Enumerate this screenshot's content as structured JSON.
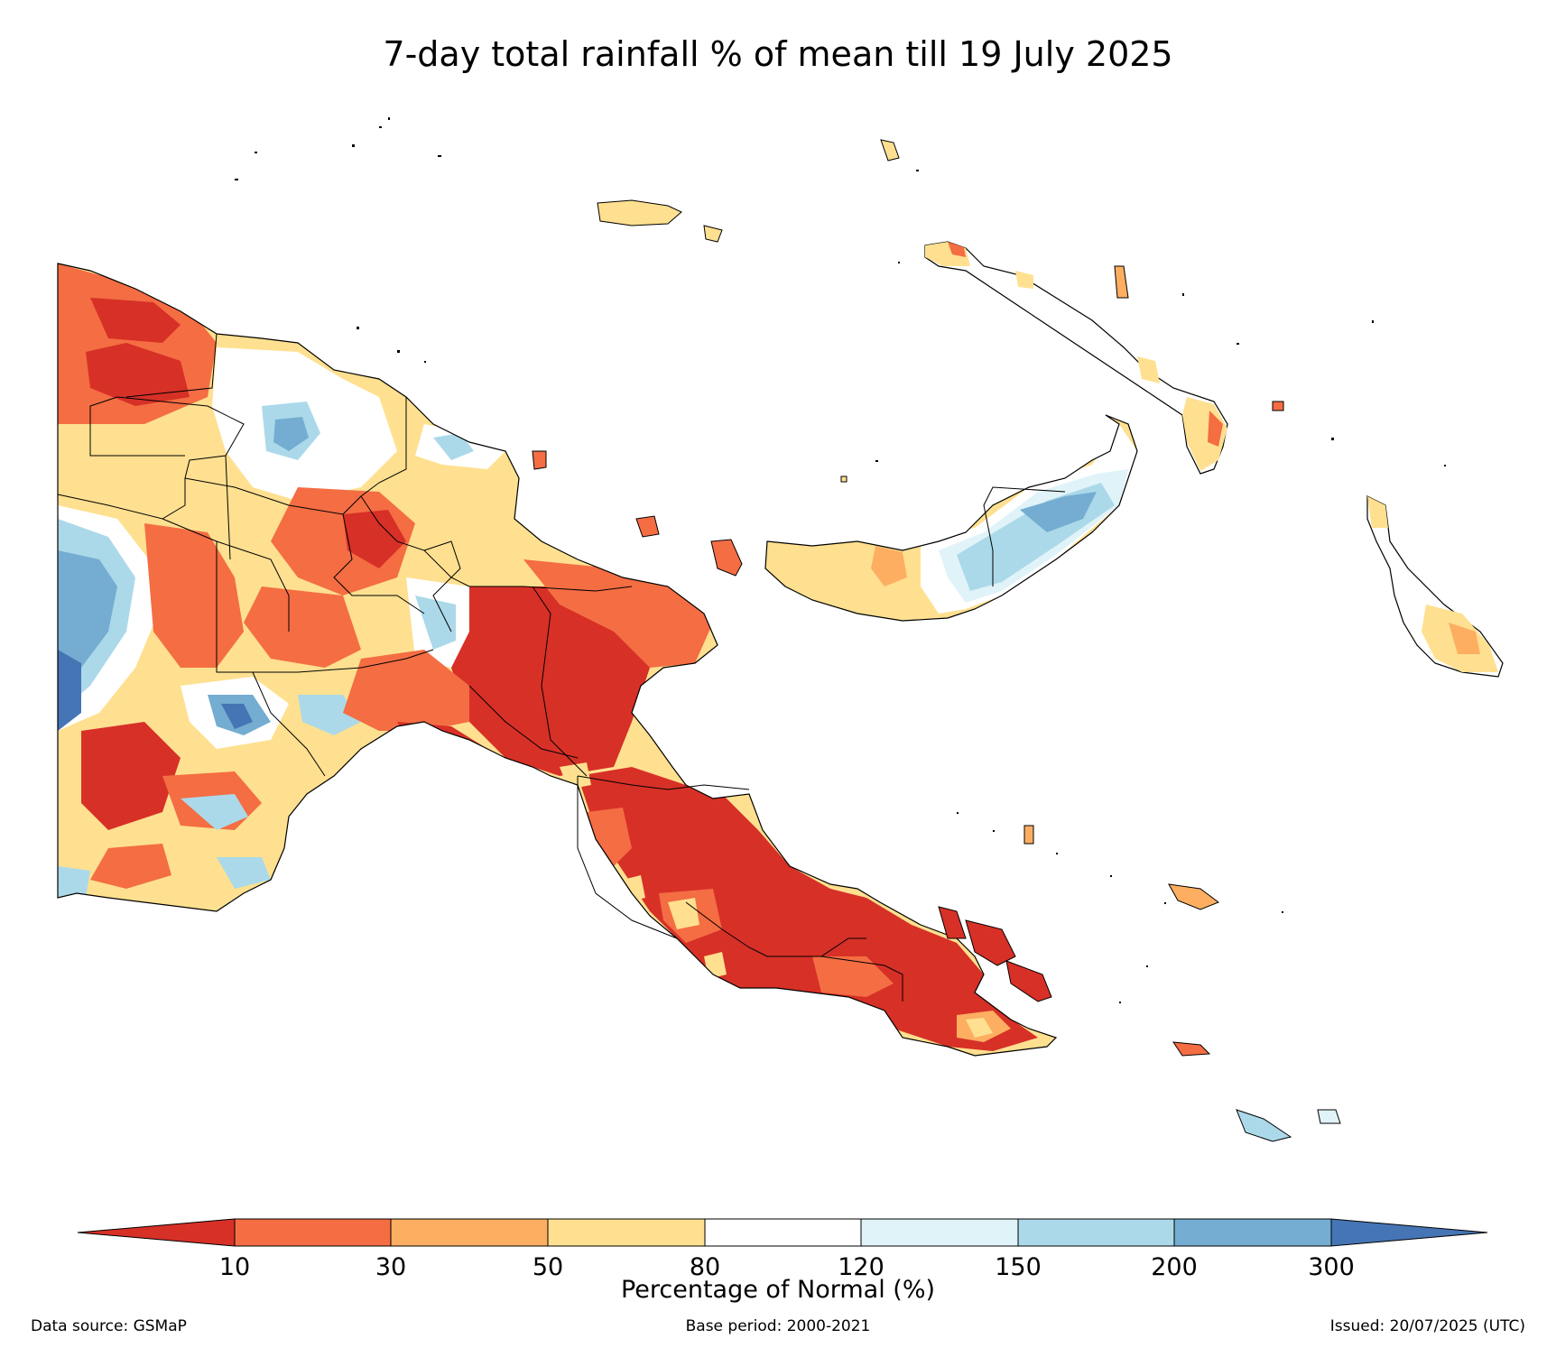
{
  "title": "7-day total rainfall % of mean till 19 July 2025",
  "colorbar": {
    "title": "Percentage of Normal (%)",
    "ticks": [
      "10",
      "30",
      "50",
      "80",
      "120",
      "150",
      "200",
      "300"
    ],
    "colors": {
      "under": "#d73027",
      "bins": [
        "#f46d43",
        "#fdae61",
        "#fee090",
        "#ffffff",
        "#e0f3f8",
        "#abd9e9",
        "#74add1"
      ],
      "over": "#4575b4"
    }
  },
  "footer": {
    "source": "Data source: GSMaP",
    "base": "Base period: 2000-2021",
    "issued": "Issued: 20/07/2025 (UTC)"
  }
}
